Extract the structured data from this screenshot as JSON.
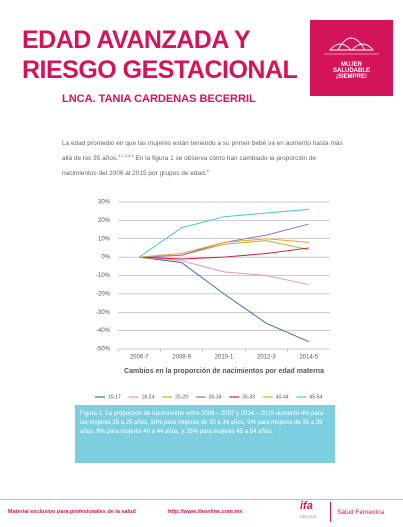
{
  "header": {
    "title_lines": [
      "EDAD AVANZADA Y",
      "RIESGO GESTACIONAL"
    ],
    "author": "LNCA. TANIA CARDENAS BECERRIL",
    "badge_lines": [
      "MUJER",
      "SALUDABLE",
      "¡SIEMPRE!"
    ]
  },
  "intro": {
    "text1": "La edad promedio en que las mujeres están teniendo a su primer bebé va en aumento hasta más allá de los 35 años.",
    "sup1": "1,2,3,4,5",
    "text2": " En la figura 1 se observa cómo han cambiado la proporción de nacimientos del 2006 al 2015 por grupos de edad.",
    "sup2": "6"
  },
  "chart_data": {
    "type": "line",
    "x_label": "Cambios en la proporción de nacimientos por edad materna",
    "categories": [
      "2006-7",
      "2008-9",
      "2010-1",
      "2012-3",
      "2014-5"
    ],
    "ylim": [
      -50,
      30
    ],
    "yticks": [
      {
        "value": 30,
        "label": "30%"
      },
      {
        "value": 20,
        "label": "20%"
      },
      {
        "value": 10,
        "label": "10%"
      },
      {
        "value": 0,
        "label": "0%"
      },
      {
        "value": -10,
        "label": "-10%"
      },
      {
        "value": -20,
        "label": "-20%"
      },
      {
        "value": -30,
        "label": "-30%"
      },
      {
        "value": -40,
        "label": "-40%"
      },
      {
        "value": -50,
        "label": "-50%"
      }
    ],
    "grid": true,
    "series": [
      {
        "name": "15-17",
        "color": "#3b6fb0",
        "values": [
          0,
          -3,
          -20,
          -36,
          -46
        ]
      },
      {
        "name": "18-24",
        "color": "#e89aa8",
        "values": [
          0,
          -2,
          -8,
          -10,
          -15
        ]
      },
      {
        "name": "25-29",
        "color": "#b8b03a",
        "values": [
          0,
          1,
          7,
          9,
          4
        ]
      },
      {
        "name": "30-34",
        "color": "#8a78b0",
        "values": [
          0,
          1,
          8,
          12,
          18
        ]
      },
      {
        "name": "35-39",
        "color": "#c8203a",
        "values": [
          0,
          -1,
          0,
          2,
          5
        ]
      },
      {
        "name": "40-44",
        "color": "#f0a030",
        "values": [
          0,
          2,
          8,
          10,
          8
        ]
      },
      {
        "name": "45-54",
        "color": "#4ec0d8",
        "values": [
          0,
          16,
          22,
          24,
          26
        ]
      }
    ]
  },
  "caption": "Figura 1. La proporción de nacimientos entre 2006 – 2007 y 2014 – 2015 aumentó 4% para las mujeres 25 a 29 años, 18% para mujeres de 30 a 34 años, 5% para mujeres de 35 a 39 años, 8% para mujeres 40 a 44 años, y 26% para mujeres 45 a 54 años.",
  "footer": {
    "note": "Material exclusivo para profesionales de la salud",
    "url": "http://www.ifaonline.com.mx",
    "brand": "ifa",
    "brand_sub": "CELTICS",
    "section": "Salud Femenina"
  }
}
